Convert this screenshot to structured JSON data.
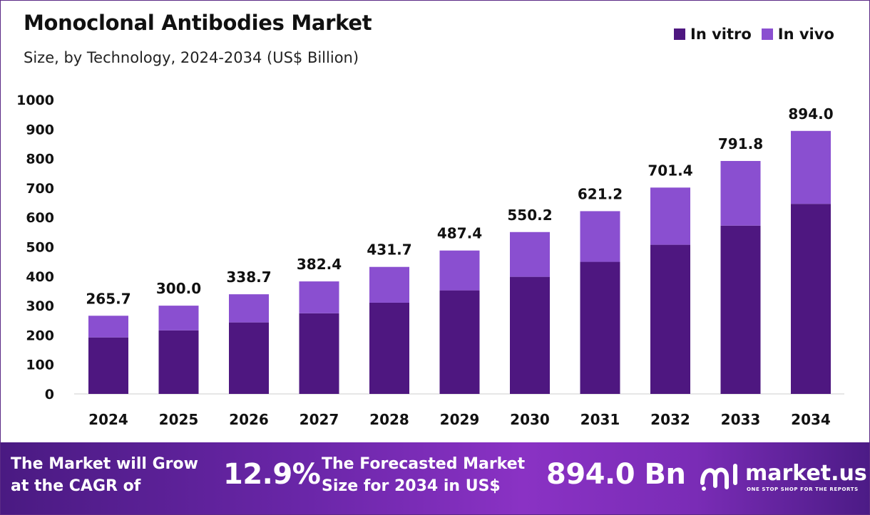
{
  "title": "Monoclonal Antibodies Market",
  "subtitle": "Size, by Technology, 2024-2034 (US$ Billion)",
  "colors": {
    "in_vitro": "#4e1780",
    "in_vivo": "#8a4fd0",
    "banner_start": "#4a1a82",
    "banner_end": "#8a32c4"
  },
  "chart_data": {
    "type": "bar",
    "stacked": true,
    "categories": [
      "2024",
      "2025",
      "2026",
      "2027",
      "2028",
      "2029",
      "2030",
      "2031",
      "2032",
      "2033",
      "2034"
    ],
    "series": [
      {
        "name": "In vitro",
        "values": [
          192,
          216,
          243,
          274,
          310,
          352,
          398,
          449,
          507,
          572,
          646
        ]
      },
      {
        "name": "In vivo",
        "values": [
          73.7,
          84.0,
          95.7,
          108.4,
          121.7,
          135.4,
          152.2,
          172.2,
          194.4,
          219.8,
          248.0
        ]
      }
    ],
    "totals": [
      "265.7",
      "300.0",
      "338.7",
      "382.4",
      "431.7",
      "487.4",
      "550.2",
      "621.2",
      "701.4",
      "791.8",
      "894.0"
    ],
    "yticks": [
      "0",
      "100",
      "200",
      "300",
      "400",
      "500",
      "600",
      "700",
      "800",
      "900",
      "1000"
    ],
    "ylim": [
      0,
      1000
    ],
    "grid": false,
    "legend_position": "top-right"
  },
  "legend": [
    {
      "label": "In vitro",
      "color": "#4e1780"
    },
    {
      "label": "In vivo",
      "color": "#8a4fd0"
    }
  ],
  "banner": {
    "cagr_text_line1": "The Market will Grow",
    "cagr_text_line2": "at the CAGR of",
    "cagr_value": "12.9%",
    "forecast_text_line1": "The Forecasted Market",
    "forecast_text_line2": "Size for 2034 in US$",
    "forecast_value": "894.0 Bn",
    "logo_text": "market.us",
    "logo_tagline": "ONE STOP SHOP FOR THE REPORTS"
  }
}
